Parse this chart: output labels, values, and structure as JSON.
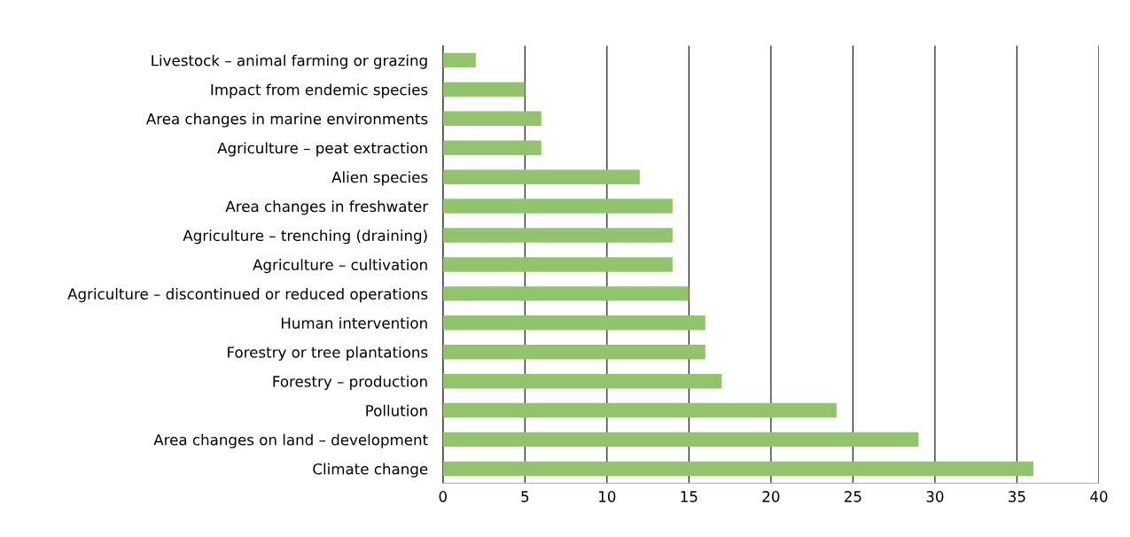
{
  "chart_data": {
    "type": "bar",
    "orientation": "horizontal",
    "categories": [
      "Livestock – animal farming or grazing",
      "Impact from endemic species",
      "Area changes in marine environments",
      "Agriculture – peat extraction",
      "Alien species",
      "Area changes in freshwater",
      "Agriculture – trenching (draining)",
      "Agriculture – cultivation",
      "Agriculture – discontinued or reduced operations",
      "Human intervention",
      "Forestry or tree plantations",
      "Forestry – production",
      "Pollution",
      "Area changes on land – development",
      "Climate change"
    ],
    "values": [
      2,
      5,
      6,
      6,
      12,
      14,
      14,
      14,
      15,
      16,
      16,
      17,
      24,
      29,
      36
    ],
    "color": "#92c46d",
    "xlim": [
      0,
      40
    ],
    "xticks": [
      0,
      5,
      10,
      15,
      20,
      25,
      30,
      35,
      40
    ],
    "grid": "x",
    "legend": false
  }
}
